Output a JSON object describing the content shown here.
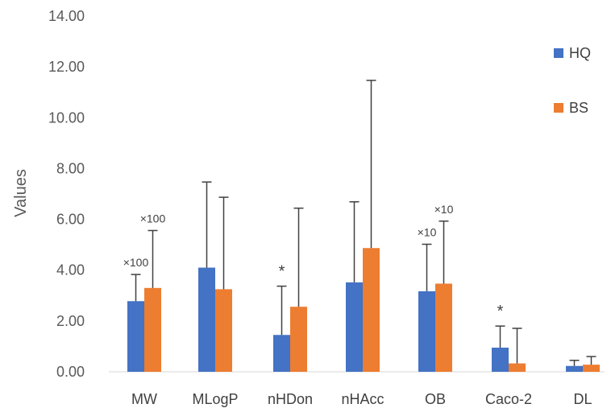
{
  "chart_data": {
    "type": "bar",
    "title": "",
    "xlabel": "",
    "ylabel": "Values",
    "ylim": [
      0,
      14
    ],
    "yticks": [
      "0.00",
      "2.00",
      "4.00",
      "6.00",
      "8.00",
      "10.00",
      "12.00",
      "14.00"
    ],
    "categories": [
      "MW",
      "MLogP",
      "nHDon",
      "nHAcc",
      "OB",
      "Caco-2",
      "DL"
    ],
    "series": [
      {
        "name": "HQ",
        "color": "#4472C4",
        "values": [
          2.78,
          4.1,
          1.45,
          3.52,
          3.17,
          0.95,
          0.23
        ],
        "error": [
          1.05,
          3.37,
          1.92,
          3.17,
          1.85,
          0.85,
          0.22
        ]
      },
      {
        "name": "BS",
        "color": "#ED7D31",
        "values": [
          3.3,
          3.25,
          2.56,
          4.87,
          3.47,
          0.33,
          0.28
        ],
        "error": [
          2.26,
          3.62,
          3.88,
          6.6,
          2.46,
          1.38,
          0.32
        ]
      }
    ],
    "annotations": [
      {
        "category": "MW",
        "series": "HQ",
        "text": "×100"
      },
      {
        "category": "MW",
        "series": "BS",
        "text": "×100"
      },
      {
        "category": "nHDon",
        "series": "HQ",
        "text": "*"
      },
      {
        "category": "OB",
        "series": "HQ",
        "text": "×10"
      },
      {
        "category": "OB",
        "series": "BS",
        "text": "×10"
      },
      {
        "category": "Caco-2",
        "series": "HQ",
        "text": "*"
      }
    ],
    "legend_position": "top-right",
    "grid": false
  }
}
